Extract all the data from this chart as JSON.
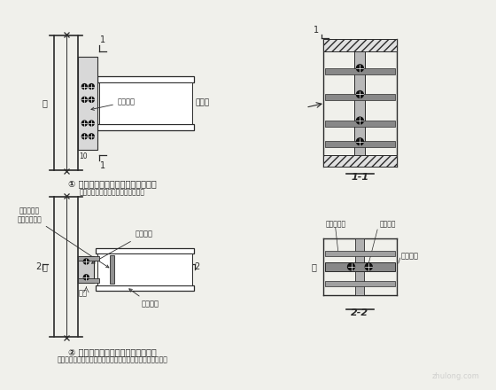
{
  "bg_color": "#f0f0eb",
  "line_color": "#2a2a2a",
  "diagram1_title": "① 楼面梁与刚架柱的铰接连接（一）",
  "diagram1_subtitle": "（楼面梁与刚架柱通过连接板铰接）",
  "diagram2_title": "② 楼面梁与刚架柱的铰接连接（二）",
  "diagram2_subtitle": "（楼面梁与刚架柱通过小牛腿连接，用于楼面梁距度不大时）",
  "label_col": "柱",
  "label_beam": "楼面梁",
  "label_bolt_high": "高强螺栋",
  "label_bolt_normal": "普通螺栋",
  "label_sub_beam": "楼面次梁",
  "label_cow_leg": "牛腿",
  "label_stiff": "构造加劲耡",
  "label_stiff_pair": "（成对布置）",
  "label_11": "1-1",
  "label_22": "2-2",
  "label_10": "10",
  "label_1": "1",
  "label_2": "2"
}
